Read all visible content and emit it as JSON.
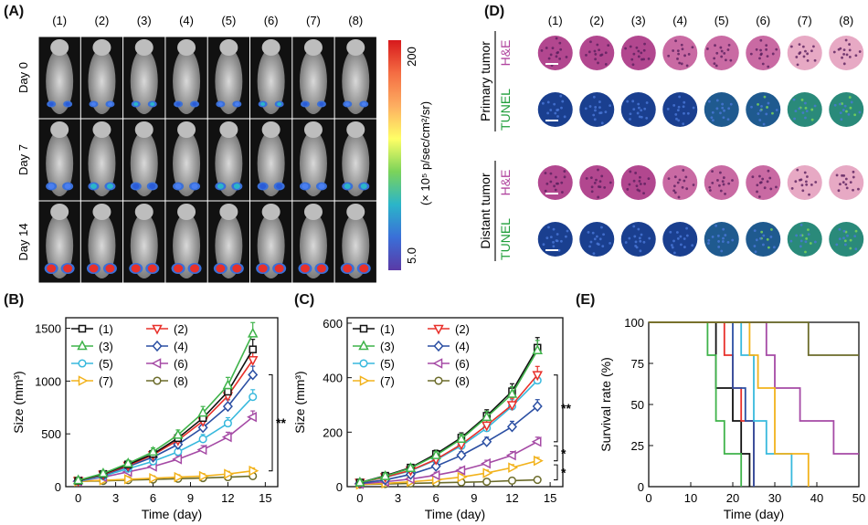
{
  "panel_labels": {
    "a": "(A)",
    "b": "(B)",
    "c": "(C)",
    "d": "(D)",
    "e": "(E)"
  },
  "groups": [
    "(1)",
    "(2)",
    "(3)",
    "(4)",
    "(5)",
    "(6)",
    "(7)",
    "(8)"
  ],
  "panel_a": {
    "rows": [
      "Day 0",
      "Day 7",
      "Day 14"
    ],
    "colorbar": {
      "max": "200",
      "min": "5.0",
      "unit": "(× 10⁵ p/sec/cm²/sr)"
    },
    "colors": {
      "background": "#111111",
      "colorbar": [
        "#d7191c",
        "#f46d43",
        "#fdae61",
        "#ffff66",
        "#7bd35a",
        "#2bb5c9",
        "#3a6fd8",
        "#5a3aa6"
      ]
    }
  },
  "panel_d": {
    "sections": [
      "Primary tumor",
      "Distant tumor"
    ],
    "stains": [
      "H&E",
      "TUNEL"
    ],
    "colors": {
      "he_label": "#b0449e",
      "tunel_label": "#1f9e3a",
      "he": "#c96aa3",
      "tunel": "#1a3f8f"
    }
  },
  "series_style": [
    {
      "name": "(1)",
      "color": "#111111",
      "marker": "square"
    },
    {
      "name": "(2)",
      "color": "#e8302a",
      "marker": "triangle-down"
    },
    {
      "name": "(3)",
      "color": "#3fb34a",
      "marker": "triangle-up"
    },
    {
      "name": "(4)",
      "color": "#2b4fa3",
      "marker": "diamond"
    },
    {
      "name": "(5)",
      "color": "#38b9dd",
      "marker": "circle"
    },
    {
      "name": "(6)",
      "color": "#a54aa5",
      "marker": "triangle-left"
    },
    {
      "name": "(7)",
      "color": "#f2b21b",
      "marker": "triangle-right"
    },
    {
      "name": "(8)",
      "color": "#6b6b2a",
      "marker": "circle"
    }
  ],
  "chart_data": [
    {
      "panel": "B",
      "type": "line",
      "xlabel": "Time (day)",
      "ylabel": "Size (mm³)",
      "xlim": [
        -1,
        16
      ],
      "ylim": [
        0,
        1600
      ],
      "xticks": [
        "0",
        "3",
        "6",
        "9",
        "12",
        "15"
      ],
      "yticks": [
        "0",
        "500",
        "1000",
        "1500"
      ],
      "x": [
        0,
        2,
        4,
        6,
        8,
        10,
        12,
        14
      ],
      "series": [
        {
          "name": "(1)",
          "values": [
            55,
            120,
            210,
            310,
            460,
            650,
            900,
            1300
          ]
        },
        {
          "name": "(2)",
          "values": [
            55,
            115,
            200,
            300,
            440,
            620,
            860,
            1200
          ]
        },
        {
          "name": "(3)",
          "values": [
            60,
            125,
            220,
            330,
            490,
            700,
            960,
            1450
          ]
        },
        {
          "name": "(4)",
          "values": [
            55,
            110,
            190,
            280,
            400,
            560,
            760,
            1060
          ]
        },
        {
          "name": "(5)",
          "values": [
            50,
            100,
            170,
            240,
            330,
            450,
            600,
            850
          ]
        },
        {
          "name": "(6)",
          "values": [
            50,
            90,
            140,
            190,
            260,
            350,
            470,
            660
          ]
        },
        {
          "name": "(7)",
          "values": [
            50,
            60,
            70,
            80,
            90,
            100,
            120,
            150
          ]
        },
        {
          "name": "(8)",
          "values": [
            50,
            55,
            62,
            68,
            75,
            82,
            90,
            100
          ]
        }
      ],
      "significance": [
        "**"
      ]
    },
    {
      "panel": "C",
      "type": "line",
      "xlabel": "Time (day)",
      "ylabel": "Size (mm³)",
      "xlim": [
        -1,
        16
      ],
      "ylim": [
        0,
        620
      ],
      "xticks": [
        "0",
        "3",
        "6",
        "9",
        "12",
        "15"
      ],
      "yticks": [
        "0",
        "200",
        "400",
        "600"
      ],
      "x": [
        0,
        2,
        4,
        6,
        8,
        10,
        12,
        14
      ],
      "series": [
        {
          "name": "(1)",
          "values": [
            15,
            40,
            70,
            120,
            180,
            260,
            350,
            510
          ]
        },
        {
          "name": "(2)",
          "values": [
            15,
            35,
            60,
            100,
            155,
            225,
            300,
            410
          ]
        },
        {
          "name": "(3)",
          "values": [
            15,
            38,
            68,
            115,
            175,
            255,
            340,
            500
          ]
        },
        {
          "name": "(4)",
          "values": [
            12,
            25,
            45,
            75,
            115,
            165,
            220,
            295
          ]
        },
        {
          "name": "(5)",
          "values": [
            15,
            34,
            58,
            98,
            150,
            215,
            295,
            390
          ]
        },
        {
          "name": "(6)",
          "values": [
            10,
            18,
            28,
            42,
            60,
            85,
            115,
            165
          ]
        },
        {
          "name": "(7)",
          "values": [
            8,
            12,
            18,
            25,
            35,
            50,
            70,
            95
          ]
        },
        {
          "name": "(8)",
          "values": [
            8,
            10,
            12,
            14,
            16,
            18,
            22,
            25
          ]
        }
      ],
      "significance": [
        "**",
        "*",
        "*"
      ]
    },
    {
      "panel": "E",
      "type": "line",
      "xlabel": "Time (day)",
      "ylabel": "Survival rate (%)",
      "xlim": [
        0,
        50
      ],
      "ylim": [
        0,
        100
      ],
      "xticks": [
        "0",
        "10",
        "20",
        "30",
        "40",
        "50"
      ],
      "yticks": [
        "0",
        "25",
        "50",
        "75",
        "100"
      ],
      "series": [
        {
          "name": "(1)",
          "points": [
            [
              0,
              100
            ],
            [
              16,
              100
            ],
            [
              16,
              60
            ],
            [
              20,
              60
            ],
            [
              20,
              40
            ],
            [
              22,
              40
            ],
            [
              22,
              20
            ],
            [
              24,
              20
            ],
            [
              24,
              0
            ]
          ]
        },
        {
          "name": "(2)",
          "points": [
            [
              0,
              100
            ],
            [
              18,
              100
            ],
            [
              18,
              80
            ],
            [
              20,
              80
            ],
            [
              20,
              60
            ],
            [
              22,
              60
            ],
            [
              22,
              40
            ],
            [
              25,
              40
            ],
            [
              25,
              0
            ]
          ]
        },
        {
          "name": "(3)",
          "points": [
            [
              0,
              100
            ],
            [
              14,
              100
            ],
            [
              14,
              80
            ],
            [
              16,
              80
            ],
            [
              16,
              40
            ],
            [
              18,
              40
            ],
            [
              18,
              20
            ],
            [
              22,
              20
            ],
            [
              22,
              0
            ]
          ]
        },
        {
          "name": "(4)",
          "points": [
            [
              0,
              100
            ],
            [
              20,
              100
            ],
            [
              20,
              60
            ],
            [
              23,
              60
            ],
            [
              23,
              40
            ],
            [
              25,
              40
            ],
            [
              25,
              0
            ]
          ]
        },
        {
          "name": "(5)",
          "points": [
            [
              0,
              100
            ],
            [
              22,
              100
            ],
            [
              22,
              80
            ],
            [
              25,
              80
            ],
            [
              25,
              40
            ],
            [
              28,
              40
            ],
            [
              28,
              20
            ],
            [
              34,
              20
            ],
            [
              34,
              0
            ]
          ]
        },
        {
          "name": "(6)",
          "points": [
            [
              0,
              100
            ],
            [
              28,
              100
            ],
            [
              28,
              80
            ],
            [
              30,
              80
            ],
            [
              30,
              60
            ],
            [
              36,
              60
            ],
            [
              36,
              40
            ],
            [
              44,
              40
            ],
            [
              44,
              20
            ],
            [
              50,
              20
            ]
          ]
        },
        {
          "name": "(7)",
          "points": [
            [
              0,
              100
            ],
            [
              24,
              100
            ],
            [
              24,
              80
            ],
            [
              26,
              80
            ],
            [
              26,
              60
            ],
            [
              30,
              60
            ],
            [
              30,
              20
            ],
            [
              38,
              20
            ],
            [
              38,
              0
            ]
          ]
        },
        {
          "name": "(8)",
          "points": [
            [
              0,
              100
            ],
            [
              38,
              100
            ],
            [
              38,
              80
            ],
            [
              50,
              80
            ]
          ]
        }
      ]
    }
  ]
}
